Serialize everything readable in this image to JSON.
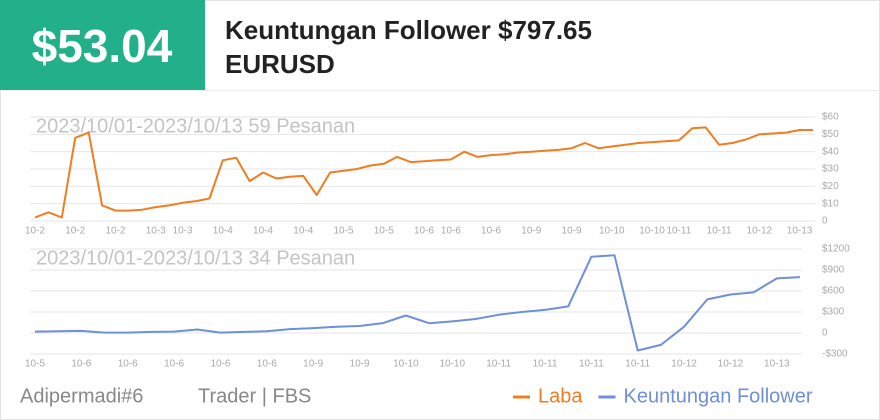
{
  "header": {
    "badge": "$53.04",
    "title": "Keuntungan Follower $797.65",
    "symbol": "EURUSD"
  },
  "footer": {
    "user": "Adipermadi#6",
    "broker": "Trader | FBS"
  },
  "chart_data": [
    {
      "type": "line",
      "subtitle": "2023/10/01-2023/10/13 59 Pesanan",
      "grid": true,
      "categories": [
        "10-2",
        null,
        null,
        "10-2",
        null,
        null,
        "10-2",
        null,
        null,
        "10-3",
        null,
        "10-3",
        null,
        null,
        "10-4",
        null,
        null,
        "10-4",
        null,
        null,
        "10-4",
        null,
        null,
        "10-5",
        null,
        null,
        "10-5",
        null,
        null,
        "10-6",
        null,
        "10-6",
        null,
        null,
        "10-6",
        null,
        null,
        "10-9",
        null,
        null,
        "10-9",
        null,
        null,
        "10-10",
        null,
        null,
        "10-10",
        null,
        "10-11",
        null,
        null,
        "10-11",
        null,
        null,
        "10-12",
        null,
        null,
        "10-13",
        null
      ],
      "series": [
        {
          "name": "Laba",
          "color": "#ef7d22",
          "values": [
            2,
            5,
            2,
            48,
            51,
            9,
            6,
            6,
            6.5,
            8,
            9,
            10.5,
            11.5,
            13,
            35,
            36.5,
            23,
            28,
            24.5,
            25.5,
            26,
            15,
            28,
            29,
            30,
            32,
            33,
            37,
            34,
            34.5,
            35,
            35.5,
            40,
            37,
            38,
            38.5,
            39.5,
            40,
            40.5,
            41,
            42,
            45,
            42,
            43,
            44,
            45,
            45.5,
            46,
            46.5,
            53.5,
            54,
            44,
            45,
            47,
            50,
            50.5,
            51,
            52.5,
            52.5
          ]
        }
      ],
      "ylim": [
        0,
        60
      ],
      "yticks": [
        0,
        {
          "value": 10,
          "label": "$10"
        },
        {
          "value": 20,
          "label": "$20"
        },
        {
          "value": 30,
          "label": "$30"
        },
        {
          "value": 40,
          "label": "$40"
        },
        {
          "value": 50,
          "label": "$50"
        },
        {
          "value": 60,
          "label": "$60"
        }
      ]
    },
    {
      "type": "line",
      "subtitle": "2023/10/01-2023/10/13 34 Pesanan",
      "grid": true,
      "categories": [
        "10-5",
        null,
        "10-6",
        null,
        "10-6",
        null,
        "10-6",
        null,
        "10-6",
        null,
        "10-6",
        null,
        "10-9",
        null,
        "10-9",
        null,
        "10-10",
        null,
        "10-10",
        null,
        "10-11",
        null,
        "10-11",
        null,
        "10-11",
        null,
        "10-11",
        null,
        "10-12",
        null,
        "10-12",
        null,
        "10-13",
        null
      ],
      "series": [
        {
          "name": "Keuntungan Follower",
          "color": "#6f8fd8",
          "values": [
            20,
            25,
            30,
            5,
            5,
            15,
            20,
            50,
            5,
            15,
            25,
            55,
            70,
            90,
            100,
            140,
            250,
            140,
            165,
            200,
            260,
            300,
            330,
            380,
            1090,
            1110,
            -250,
            -170,
            90,
            480,
            550,
            580,
            780,
            798
          ]
        }
      ],
      "ylim": [
        -300,
        1200
      ],
      "yticks": [
        {
          "value": -300,
          "label": "-$300"
        },
        0,
        {
          "value": 300,
          "label": "$300"
        },
        {
          "value": 600,
          "label": "$600"
        },
        {
          "value": 900,
          "label": "$900"
        },
        {
          "value": 1200,
          "label": "$1200"
        }
      ]
    }
  ]
}
